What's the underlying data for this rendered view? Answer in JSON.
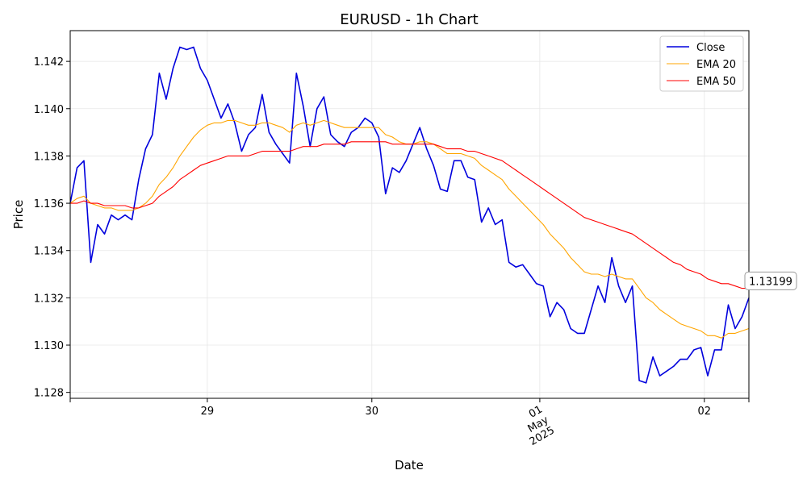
{
  "chart_data": {
    "type": "line",
    "title": "EURUSD - 1h Chart",
    "xlabel": "Date",
    "ylabel": "Price",
    "xlim": [
      0,
      99
    ],
    "ylim": [
      1.12775,
      1.1433
    ],
    "grid": true,
    "legend_position": "top-right",
    "x_ticks": [
      {
        "x": 20,
        "label": "29"
      },
      {
        "x": 44,
        "label": "30"
      },
      {
        "x": 68.5,
        "label": "01\nMay\n2025"
      },
      {
        "x": 92.5,
        "label": "02"
      }
    ],
    "y_ticks": [
      {
        "value": 1.128,
        "label": "1.128"
      },
      {
        "value": 1.13,
        "label": "1.130"
      },
      {
        "value": 1.132,
        "label": "1.132"
      },
      {
        "value": 1.134,
        "label": "1.134"
      },
      {
        "value": 1.136,
        "label": "1.136"
      },
      {
        "value": 1.138,
        "label": "1.138"
      },
      {
        "value": 1.14,
        "label": "1.140"
      },
      {
        "value": 1.142,
        "label": "1.142"
      }
    ],
    "last_value_label": "1.13199",
    "series": [
      {
        "name": "Close",
        "color": "#0000dd",
        "width": 1.6,
        "values": [
          1.136,
          1.1375,
          1.1378,
          1.1335,
          1.1351,
          1.1347,
          1.1355,
          1.1353,
          1.1355,
          1.1353,
          1.137,
          1.1383,
          1.1389,
          1.1415,
          1.1404,
          1.1417,
          1.1426,
          1.1425,
          1.1426,
          1.1417,
          1.1412,
          1.1404,
          1.1396,
          1.1402,
          1.1394,
          1.1382,
          1.1389,
          1.1392,
          1.1406,
          1.139,
          1.1385,
          1.1381,
          1.1377,
          1.1415,
          1.1401,
          1.1384,
          1.14,
          1.1405,
          1.1389,
          1.1386,
          1.1384,
          1.139,
          1.1392,
          1.1396,
          1.1394,
          1.1388,
          1.1364,
          1.1375,
          1.1373,
          1.1378,
          1.1385,
          1.1392,
          1.1383,
          1.1376,
          1.1366,
          1.1365,
          1.1378,
          1.1378,
          1.1371,
          1.137,
          1.1352,
          1.1358,
          1.1351,
          1.1353,
          1.1335,
          1.1333,
          1.1334,
          1.133,
          1.1326,
          1.1325,
          1.1312,
          1.1318,
          1.1315,
          1.1307,
          1.1305,
          1.1305,
          1.1315,
          1.1325,
          1.1318,
          1.1337,
          1.1325,
          1.1318,
          1.1325,
          1.1285,
          1.1284,
          1.1295,
          1.1287,
          1.1289,
          1.1291,
          1.1294,
          1.1294,
          1.1298,
          1.1299,
          1.1287,
          1.1298,
          1.1298,
          1.1317,
          1.1307,
          1.1312,
          1.132
        ]
      },
      {
        "name": "EMA 20",
        "color": "#ffa500",
        "width": 1.1,
        "values": [
          1.136,
          1.1362,
          1.1363,
          1.136,
          1.1359,
          1.1358,
          1.1358,
          1.1357,
          1.1357,
          1.1357,
          1.1358,
          1.136,
          1.1363,
          1.1368,
          1.1371,
          1.1375,
          1.138,
          1.1384,
          1.1388,
          1.1391,
          1.1393,
          1.1394,
          1.1394,
          1.1395,
          1.1395,
          1.1394,
          1.1393,
          1.1393,
          1.1394,
          1.1394,
          1.1393,
          1.1392,
          1.139,
          1.1393,
          1.1394,
          1.1393,
          1.1394,
          1.1395,
          1.1394,
          1.1393,
          1.1392,
          1.1392,
          1.1392,
          1.1392,
          1.1392,
          1.1392,
          1.1389,
          1.1388,
          1.1386,
          1.1385,
          1.1385,
          1.1386,
          1.1386,
          1.1385,
          1.1383,
          1.1381,
          1.1381,
          1.1381,
          1.138,
          1.1379,
          1.1376,
          1.1374,
          1.1372,
          1.137,
          1.1366,
          1.1363,
          1.136,
          1.1357,
          1.1354,
          1.1351,
          1.1347,
          1.1344,
          1.1341,
          1.1337,
          1.1334,
          1.1331,
          1.133,
          1.133,
          1.1329,
          1.133,
          1.1329,
          1.1328,
          1.1328,
          1.1324,
          1.132,
          1.1318,
          1.1315,
          1.1313,
          1.1311,
          1.1309,
          1.1308,
          1.1307,
          1.1306,
          1.1304,
          1.1304,
          1.1303,
          1.1305,
          1.1305,
          1.1306,
          1.1307
        ]
      },
      {
        "name": "EMA 50",
        "color": "#ff0000",
        "width": 1.1,
        "values": [
          1.136,
          1.136,
          1.1361,
          1.136,
          1.136,
          1.1359,
          1.1359,
          1.1359,
          1.1359,
          1.1358,
          1.1358,
          1.1359,
          1.136,
          1.1363,
          1.1365,
          1.1367,
          1.137,
          1.1372,
          1.1374,
          1.1376,
          1.1377,
          1.1378,
          1.1379,
          1.138,
          1.138,
          1.138,
          1.138,
          1.1381,
          1.1382,
          1.1382,
          1.1382,
          1.1382,
          1.1382,
          1.1383,
          1.1384,
          1.1384,
          1.1384,
          1.1385,
          1.1385,
          1.1385,
          1.1385,
          1.1386,
          1.1386,
          1.1386,
          1.1386,
          1.1386,
          1.1386,
          1.1385,
          1.1385,
          1.1385,
          1.1385,
          1.1385,
          1.1385,
          1.1385,
          1.1384,
          1.1383,
          1.1383,
          1.1383,
          1.1382,
          1.1382,
          1.1381,
          1.138,
          1.1379,
          1.1378,
          1.1376,
          1.1374,
          1.1372,
          1.137,
          1.1368,
          1.1366,
          1.1364,
          1.1362,
          1.136,
          1.1358,
          1.1356,
          1.1354,
          1.1353,
          1.1352,
          1.1351,
          1.135,
          1.1349,
          1.1348,
          1.1347,
          1.1345,
          1.1343,
          1.1341,
          1.1339,
          1.1337,
          1.1335,
          1.1334,
          1.1332,
          1.1331,
          1.133,
          1.1328,
          1.1327,
          1.1326,
          1.1326,
          1.1325,
          1.1324,
          1.1324
        ]
      }
    ]
  }
}
